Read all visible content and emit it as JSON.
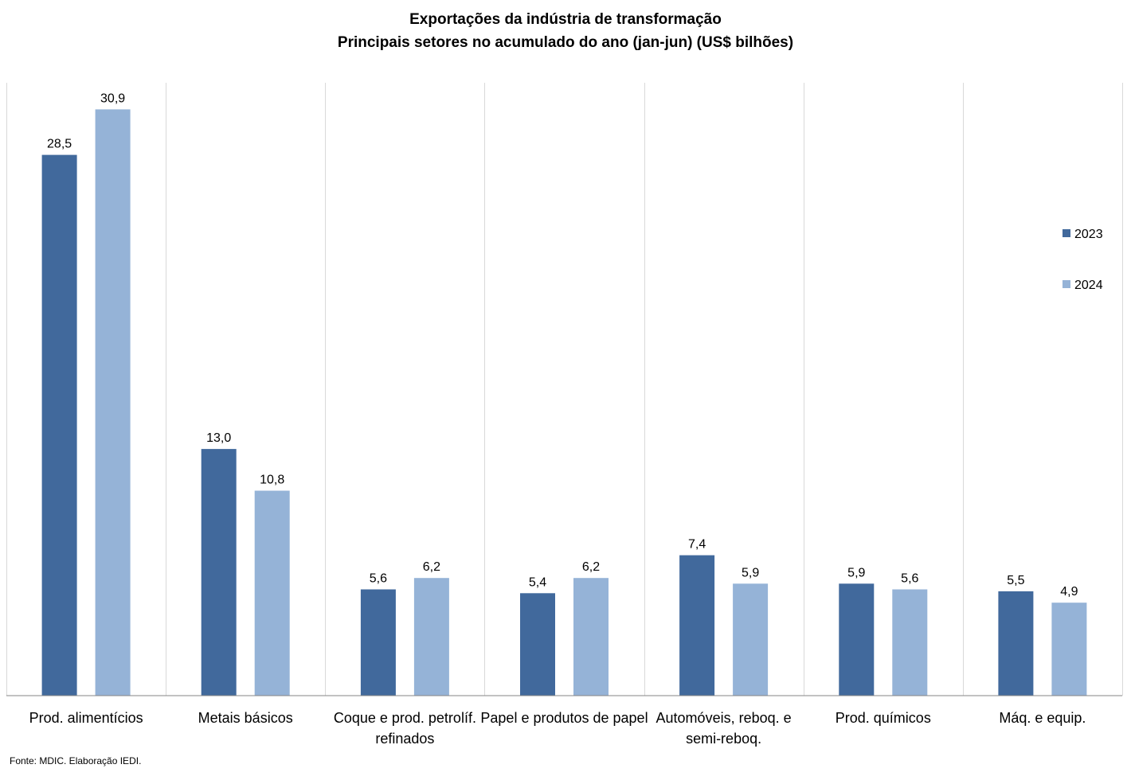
{
  "chart_data": {
    "type": "bar",
    "title": "Exportações da indústria de transformação",
    "subtitle": "Principais setores no acumulado do ano (jan-jun) (US$ bilhões)",
    "categories": [
      "Prod. alimentícios",
      "Metais básicos",
      "Coque e prod. petrolíf. refinados",
      "Papel e produtos de papel",
      "Automóveis, reboq. e semi-reboq.",
      "Prod. químicos",
      "Máq. e equip."
    ],
    "series": [
      {
        "name": "2023",
        "color": "#41699c",
        "values": [
          28.5,
          13.0,
          5.6,
          5.4,
          7.4,
          5.9,
          5.5
        ],
        "labels": [
          "28,5",
          "13,0",
          "5,6",
          "5,4",
          "7,4",
          "5,9",
          "5,5"
        ]
      },
      {
        "name": "2024",
        "color": "#95b3d7",
        "values": [
          30.9,
          10.8,
          6.2,
          6.2,
          5.9,
          5.6,
          4.9
        ],
        "labels": [
          "30,9",
          "10,8",
          "6,2",
          "6,2",
          "5,9",
          "5,6",
          "4,9"
        ]
      }
    ],
    "xlabel": "",
    "ylabel": "",
    "ylim": [
      0,
      32.3
    ],
    "grid": false,
    "legend_position": "right"
  },
  "source": "Fonte: MDIC. Elaboração IEDI."
}
